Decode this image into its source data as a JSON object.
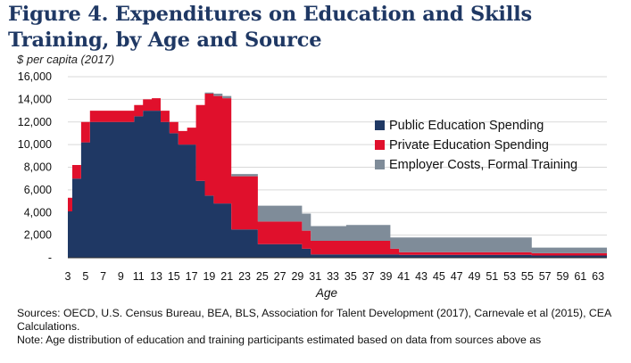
{
  "figure": {
    "title": "Figure 4. Expenditures on Education and Skills Training, by Age and Source",
    "unit_label": "$  per capita (2017)"
  },
  "chart_data": {
    "type": "area",
    "stacked": true,
    "title": "Figure 4. Expenditures on Education and Skills Training, by Age and Source",
    "xlabel": "Age",
    "ylabel": "$  per capita (2017)",
    "ylim": [
      0,
      16000
    ],
    "yticks": [
      0,
      2000,
      4000,
      6000,
      8000,
      10000,
      12000,
      14000,
      16000
    ],
    "ytick_labels": [
      "-",
      "2,000",
      "4,000",
      "6,000",
      "8,000",
      "10,000",
      "12,000",
      "14,000",
      "16,000"
    ],
    "xlim": [
      3,
      64
    ],
    "xticks": [
      3,
      5,
      7,
      9,
      11,
      13,
      15,
      17,
      19,
      21,
      23,
      25,
      27,
      29,
      31,
      33,
      35,
      37,
      39,
      41,
      43,
      45,
      47,
      49,
      51,
      53,
      55,
      57,
      59,
      61,
      63
    ],
    "grid": "horizontal",
    "legend_position": "right",
    "x": [
      3,
      4,
      5,
      6,
      7,
      8,
      9,
      10,
      11,
      12,
      13,
      14,
      15,
      16,
      17,
      18,
      19,
      20,
      21,
      22,
      23,
      24,
      25,
      26,
      27,
      28,
      29,
      30,
      31,
      32,
      33,
      34,
      35,
      36,
      37,
      38,
      39,
      40,
      41,
      42,
      43,
      44,
      45,
      46,
      47,
      48,
      49,
      50,
      51,
      52,
      53,
      54,
      55,
      56,
      57,
      58,
      59,
      60,
      61,
      62,
      63,
      64
    ],
    "series": [
      {
        "name": "Public Education Spending",
        "color": "#1f3864",
        "values": [
          4100,
          7000,
          10200,
          12000,
          12000,
          12000,
          12000,
          12000,
          12500,
          13000,
          13000,
          12000,
          11000,
          10000,
          10000,
          6800,
          5500,
          4800,
          4800,
          2500,
          2500,
          2500,
          1200,
          1200,
          1200,
          1200,
          1200,
          800,
          300,
          300,
          300,
          300,
          300,
          300,
          300,
          300,
          300,
          300,
          250,
          250,
          250,
          250,
          250,
          250,
          250,
          250,
          250,
          250,
          250,
          250,
          250,
          250,
          250,
          200,
          200,
          200,
          200,
          200,
          200,
          200,
          200,
          200
        ]
      },
      {
        "name": "Private Education Spending",
        "color": "#e0102c",
        "values": [
          1200,
          1200,
          1800,
          1000,
          1000,
          1000,
          1000,
          1000,
          1000,
          1000,
          1100,
          1000,
          1000,
          1200,
          1500,
          6700,
          9000,
          9500,
          9300,
          4700,
          4700,
          4700,
          2000,
          2000,
          2000,
          2000,
          2000,
          1600,
          1200,
          1200,
          1200,
          1200,
          1200,
          1200,
          1200,
          1200,
          1200,
          500,
          250,
          250,
          250,
          250,
          250,
          250,
          250,
          250,
          250,
          250,
          250,
          250,
          250,
          250,
          250,
          200,
          200,
          200,
          200,
          200,
          200,
          200,
          200,
          200
        ]
      },
      {
        "name": "Employer Costs, Formal Training",
        "color": "#7f8c99",
        "values": [
          0,
          0,
          0,
          0,
          0,
          0,
          0,
          0,
          0,
          0,
          0,
          0,
          0,
          0,
          0,
          0,
          100,
          200,
          200,
          200,
          200,
          200,
          1400,
          1400,
          1400,
          1400,
          1400,
          1500,
          1300,
          1300,
          1300,
          1300,
          1400,
          1400,
          1400,
          1400,
          1400,
          1000,
          1300,
          1300,
          1300,
          1300,
          1300,
          1300,
          1300,
          1300,
          1300,
          1300,
          1300,
          1300,
          1300,
          1300,
          1300,
          500,
          500,
          500,
          500,
          500,
          500,
          500,
          500,
          500
        ]
      }
    ]
  },
  "notes": {
    "sources": "Sources: OECD, U.S. Census Bureau, BEA, BLS, Association for Talent Development (2017), Carnevale et al (2015), CEA Calculations.",
    "note": "Note: Age distribution of education and training participants estimated based on data from sources above as"
  }
}
